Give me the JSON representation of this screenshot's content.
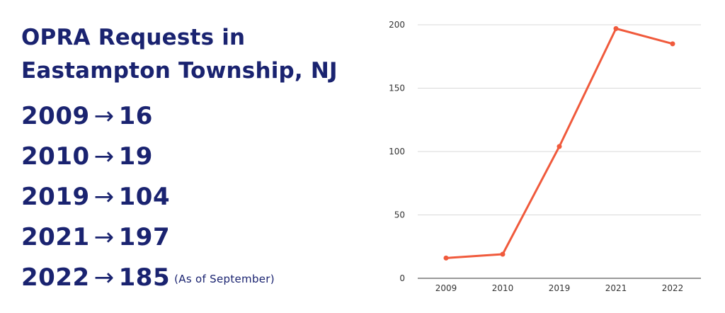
{
  "heading": {
    "line1": "OPRA Requests in",
    "line2": "Eastampton Township, NJ"
  },
  "stats": [
    {
      "year": "2009",
      "arrow": "→",
      "count": "16",
      "note": ""
    },
    {
      "year": "2010",
      "arrow": "→",
      "count": "19",
      "note": ""
    },
    {
      "year": "2019",
      "arrow": "→",
      "count": "104",
      "note": ""
    },
    {
      "year": "2021",
      "arrow": "→",
      "count": "197",
      "note": ""
    },
    {
      "year": "2022",
      "arrow": "→",
      "count": "185",
      "note": "(As of September)"
    }
  ],
  "colors": {
    "text": "#1a2370",
    "line": "#f05a3c",
    "grid": "#d9d9d9"
  },
  "chart_data": {
    "type": "line",
    "categories": [
      "2009",
      "2010",
      "2019",
      "2021",
      "2022"
    ],
    "series": [
      {
        "values": [
          16,
          19,
          104,
          197,
          185
        ]
      }
    ],
    "ylim": [
      0,
      200
    ],
    "yticks": [
      0,
      50,
      100,
      150,
      200
    ],
    "grid": true,
    "markers": true
  }
}
